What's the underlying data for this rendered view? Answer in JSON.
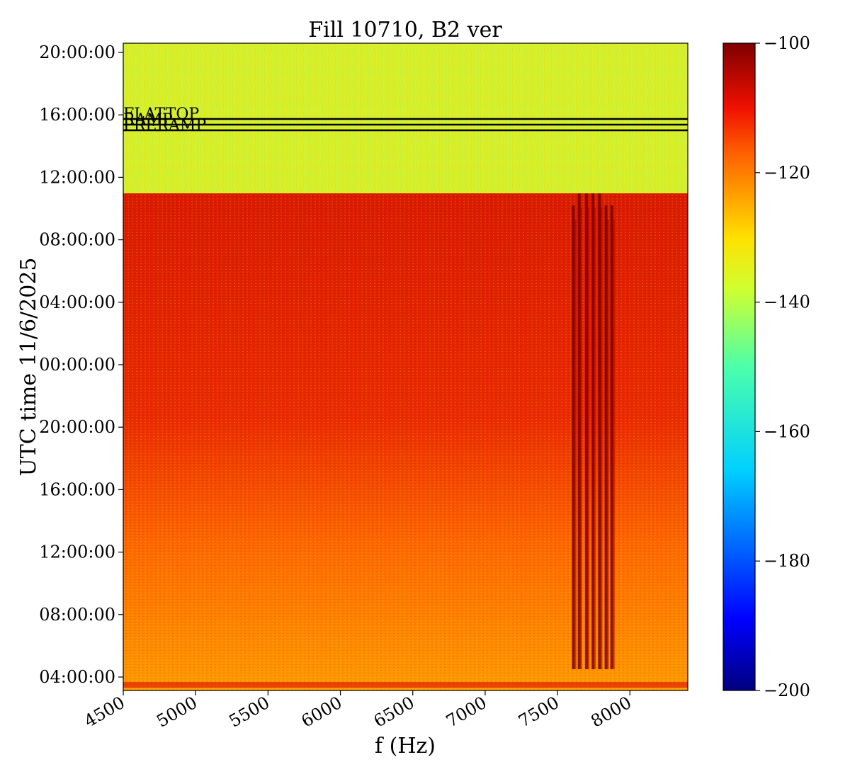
{
  "chart_data": {
    "type": "heatmap",
    "title": "Fill 10710, B2 ver",
    "xlabel": "f (Hz)",
    "ylabel": "UTC time 11/6/2025",
    "xlim": [
      4500,
      8400
    ],
    "x_ticks": [
      4500,
      5000,
      5500,
      6000,
      6500,
      7000,
      7500,
      8000
    ],
    "y_ticks": [
      "04:00:00",
      "08:00:00",
      "12:00:00",
      "16:00:00",
      "20:00:00",
      "00:00:00",
      "04:00:00",
      "08:00:00",
      "12:00:00",
      "16:00:00",
      "20:00:00"
    ],
    "colorbar": {
      "colormap": "jet",
      "range": [
        -200,
        -100
      ],
      "ticks": [
        -100,
        -120,
        -140,
        -160,
        -180,
        -200
      ],
      "tick_labels": [
        "−100",
        "−120",
        "−140",
        "−160",
        "−180",
        "−200"
      ]
    },
    "regions": [
      {
        "from_tick": "11:00 (upper)",
        "to": "top",
        "level_db": -137
      },
      {
        "from": "bottom",
        "to_tick": "11:00 (upper)",
        "level_db_start": -122,
        "level_db_end": -108
      }
    ],
    "spectral_lines_hz": [
      7610,
      7650,
      7700,
      7745,
      7790,
      7835,
      7875
    ],
    "annotations": [
      {
        "label": "FLATTOP",
        "time": "15:45"
      },
      {
        "label": "RAMP",
        "time": "15:25"
      },
      {
        "label": "PRERAMP",
        "time": "15:00"
      }
    ]
  }
}
